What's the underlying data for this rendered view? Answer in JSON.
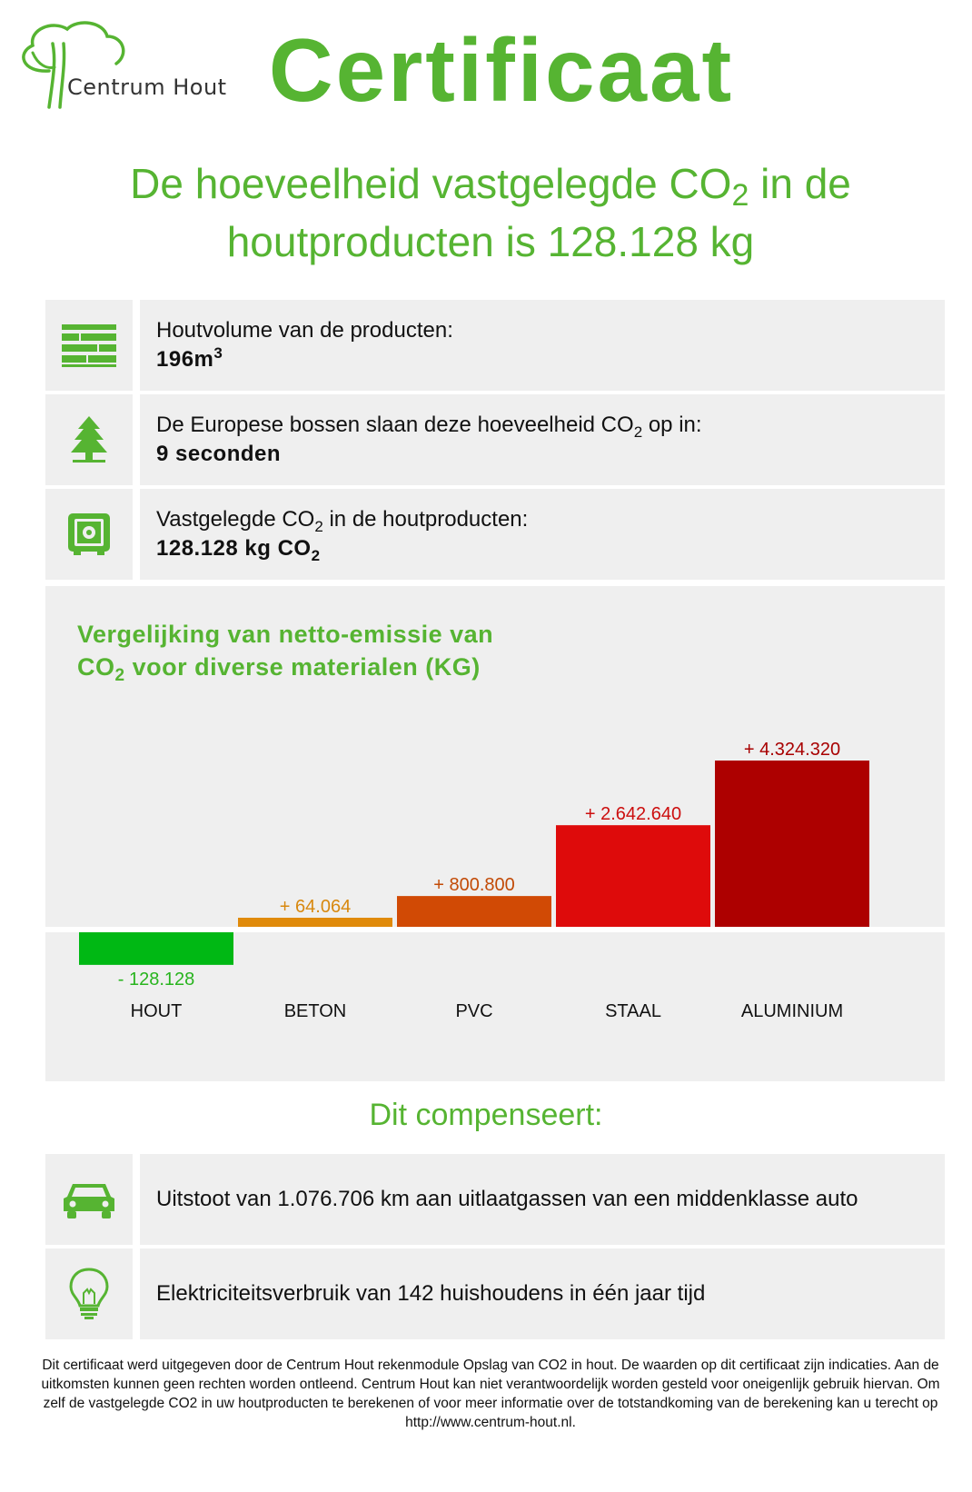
{
  "header": {
    "logo_text": "Centrum Hout",
    "title": "Certificaat"
  },
  "headline": {
    "line1_before": "De hoeveelheid vastgelegde CO",
    "line1_sub": "2",
    "line1_after": " in de",
    "line2": "houtproducten is 128.128 kg"
  },
  "stats": {
    "volume": {
      "icon": "wood-stack-icon",
      "label": "Houtvolume van de producten:",
      "value": "196m",
      "value_sup": "3"
    },
    "forest": {
      "icon": "tree-icon",
      "label_before": "De Europese bossen slaan deze hoeveelheid CO",
      "label_sub": "2",
      "label_after": " op in:",
      "value": "9 seconden"
    },
    "stored": {
      "icon": "safe-icon",
      "label_before": "Vastgelegde CO",
      "label_sub": "2",
      "label_after": " in de houtproducten:",
      "value_before": "128.128 kg CO",
      "value_sub": "2"
    }
  },
  "chart_title": {
    "line1": "Vergelijking van netto-emissie van",
    "line2_before": "CO",
    "line2_sub": "2",
    "line2_after": " voor diverse materialen (KG)"
  },
  "chart_data": {
    "type": "bar",
    "title": "Vergelijking van netto-emissie van CO2 voor diverse materialen (KG)",
    "categories": [
      "HOUT",
      "BETON",
      "PVC",
      "STAAL",
      "ALUMINIUM"
    ],
    "values": [
      -128128,
      64064,
      800800,
      2642640,
      4324320
    ],
    "value_labels": [
      "- 128.128",
      "+ 64.064",
      "+ 800.800",
      "+ 2.642.640",
      "+ 4.324.320"
    ],
    "colors": [
      "#00b814",
      "#e08a0a",
      "#d14a05",
      "#de0b0b",
      "#ad0000"
    ],
    "label_colors": [
      "#28b41e",
      "#d8880e",
      "#c24a06",
      "#cc0e0e",
      "#a80000"
    ],
    "legend": "none",
    "grid": false
  },
  "compensates": "Dit compenseert:",
  "offsets": {
    "car": {
      "icon": "car-icon",
      "text": "Uitstoot van 1.076.706 km aan uitlaatgassen van een middenklasse auto"
    },
    "bulb": {
      "icon": "lightbulb-icon",
      "text": "Elektriciteitsverbruik van 142 huishoudens in één jaar tijd"
    }
  },
  "footnote": "Dit certificaat werd uitgegeven door de Centrum Hout rekenmodule Opslag van CO2 in hout. De waarden op dit certificaat zijn indicaties. Aan de uitkomsten kunnen geen rechten worden ontleend. Centrum Hout kan niet verantwoordelijk worden gesteld voor oneigenlijk gebruik hiervan. Om zelf de vastgelegde CO2 in uw houtproducten te berekenen of voor meer informatie over de totstandkoming van de berekening kan u terecht op http://www.centrum-hout.nl.",
  "colors": {
    "brand_green": "#56b432",
    "panel_gray": "#efefef"
  }
}
